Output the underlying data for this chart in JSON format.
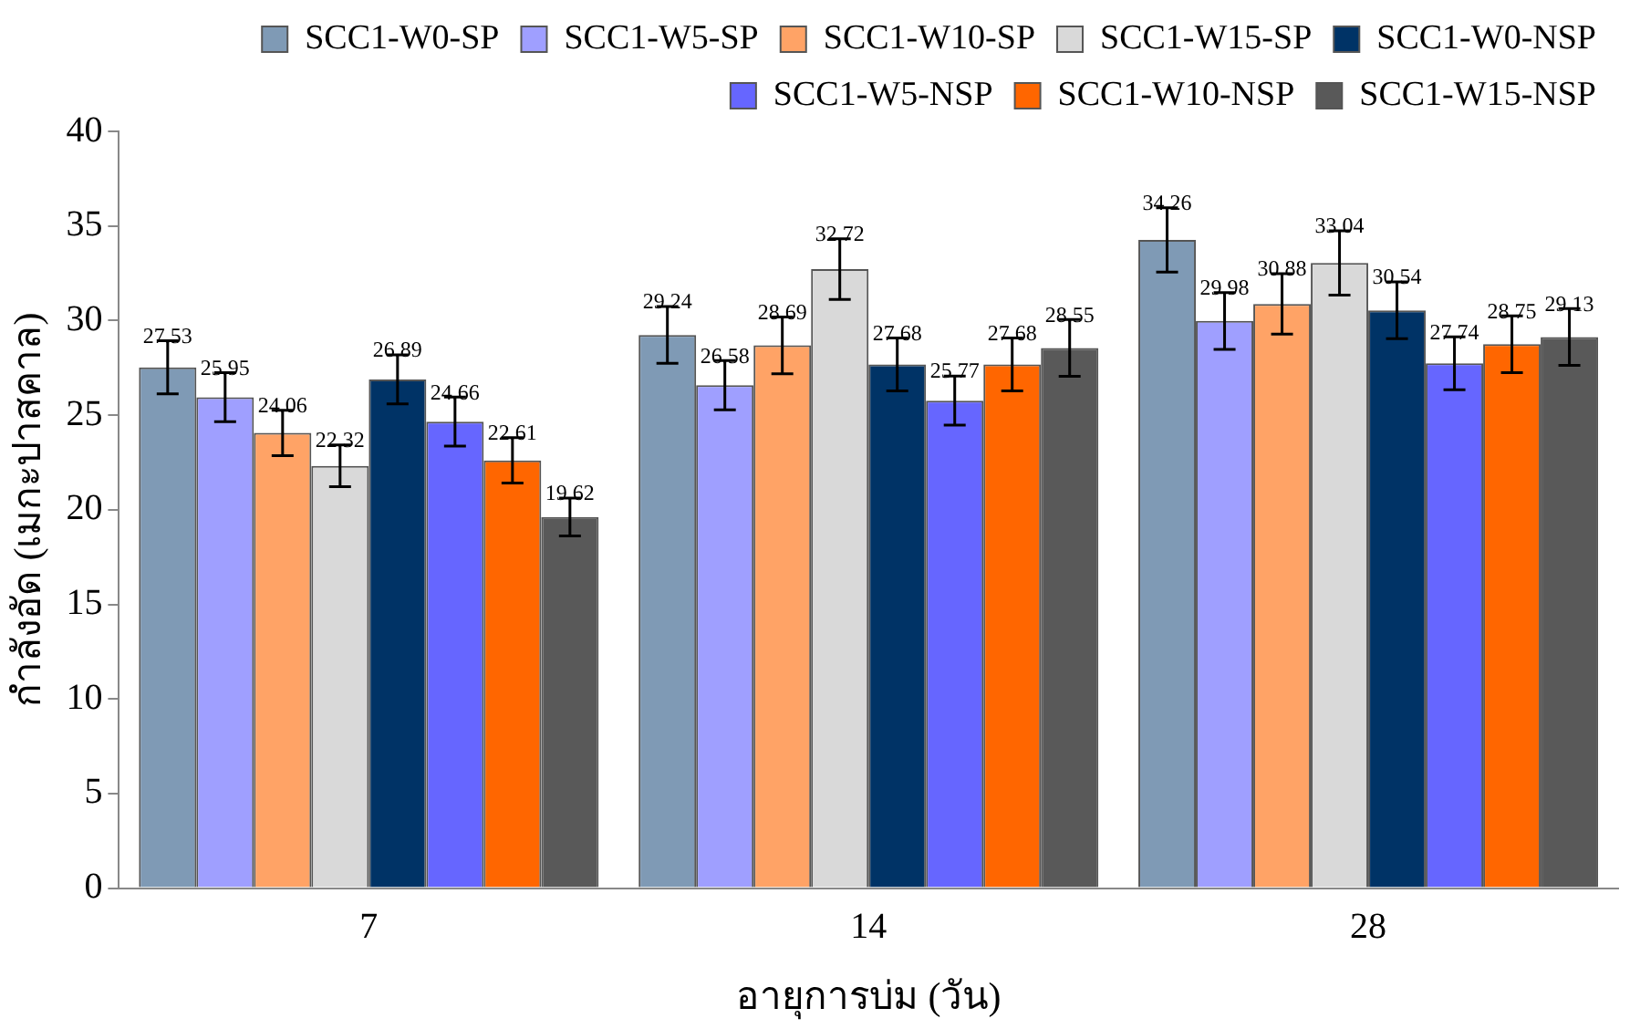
{
  "chart_data": {
    "type": "bar",
    "xlabel": "อายุการบ่ม (วัน)",
    "ylabel": "กำลังอัด (เมกะปาสคาล)",
    "categories": [
      "7",
      "14",
      "28"
    ],
    "series": [
      {
        "name": "SCC1-W0-SP",
        "color": "#7f9ab5",
        "values": [
          27.53,
          29.24,
          34.26
        ],
        "errors": [
          1.4,
          1.5,
          1.7
        ]
      },
      {
        "name": "SCC1-W5-SP",
        "color": "#9f9fff",
        "values": [
          25.95,
          26.58,
          29.98
        ],
        "errors": [
          1.3,
          1.3,
          1.5
        ]
      },
      {
        "name": "SCC1-W10-SP",
        "color": "#ffa366",
        "values": [
          24.06,
          28.69,
          30.88
        ],
        "errors": [
          1.2,
          1.5,
          1.6
        ]
      },
      {
        "name": "SCC1-W15-SP",
        "color": "#d9d9d9",
        "values": [
          22.32,
          32.72,
          33.04
        ],
        "errors": [
          1.1,
          1.6,
          1.7
        ]
      },
      {
        "name": "SCC1-W0-NSP",
        "color": "#003366",
        "values": [
          26.89,
          27.68,
          30.54
        ],
        "errors": [
          1.3,
          1.4,
          1.5
        ]
      },
      {
        "name": "SCC1-W5-NSP",
        "color": "#6666ff",
        "values": [
          24.66,
          25.77,
          27.74
        ],
        "errors": [
          1.3,
          1.3,
          1.4
        ]
      },
      {
        "name": "SCC1-W10-NSP",
        "color": "#ff6600",
        "values": [
          22.61,
          27.68,
          28.75
        ],
        "errors": [
          1.2,
          1.4,
          1.5
        ]
      },
      {
        "name": "SCC1-W15-NSP",
        "color": "#595959",
        "values": [
          19.62,
          28.55,
          29.13
        ],
        "errors": [
          1.0,
          1.5,
          1.5
        ]
      }
    ],
    "ylim": [
      0,
      40
    ],
    "yticks": [
      0,
      5,
      10,
      15,
      20,
      25,
      30,
      35,
      40
    ],
    "grid": false,
    "legend": "top",
    "data_labels": true
  }
}
